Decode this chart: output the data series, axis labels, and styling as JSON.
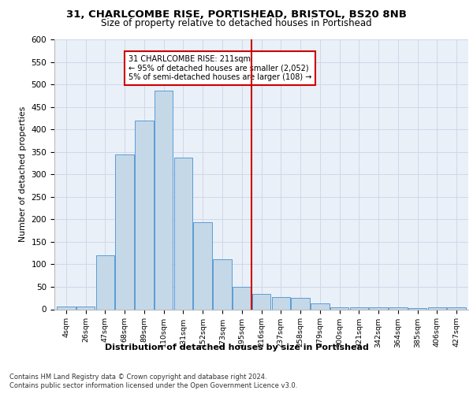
{
  "title1": "31, CHARLCOMBE RISE, PORTISHEAD, BRISTOL, BS20 8NB",
  "title2": "Size of property relative to detached houses in Portishead",
  "xlabel": "Distribution of detached houses by size in Portishead",
  "ylabel": "Number of detached properties",
  "bar_labels": [
    "4sqm",
    "26sqm",
    "47sqm",
    "68sqm",
    "89sqm",
    "110sqm",
    "131sqm",
    "152sqm",
    "173sqm",
    "195sqm",
    "216sqm",
    "237sqm",
    "258sqm",
    "279sqm",
    "300sqm",
    "321sqm",
    "342sqm",
    "364sqm",
    "385sqm",
    "406sqm",
    "427sqm"
  ],
  "bar_heights": [
    6,
    7,
    120,
    345,
    420,
    487,
    337,
    193,
    112,
    50,
    34,
    27,
    26,
    13,
    5,
    5,
    4,
    4,
    3,
    4,
    5
  ],
  "bar_color": "#c5d8e8",
  "bar_edge_color": "#5b9bd5",
  "vline_x": 9.5,
  "vline_color": "#cc0000",
  "annotation_text": "31 CHARLCOMBE RISE: 211sqm\n← 95% of detached houses are smaller (2,052)\n5% of semi-detached houses are larger (108) →",
  "annotation_box_color": "#cc0000",
  "annotation_box_facecolor": "white",
  "grid_color": "#d0d8e8",
  "background_color": "#eaf0f8",
  "footer1": "Contains HM Land Registry data © Crown copyright and database right 2024.",
  "footer2": "Contains public sector information licensed under the Open Government Licence v3.0.",
  "ylim": [
    0,
    600
  ],
  "yticks": [
    0,
    50,
    100,
    150,
    200,
    250,
    300,
    350,
    400,
    450,
    500,
    550,
    600
  ]
}
